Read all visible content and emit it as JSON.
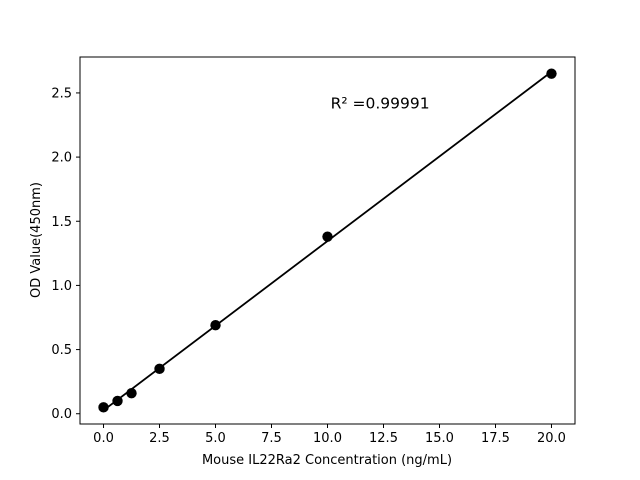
{
  "figure": {
    "background": "#ffffff"
  },
  "chart_data": {
    "type": "scatter",
    "title": "",
    "xlabel": "Mouse IL22Ra2 Concentration (ng/mL)",
    "ylabel": "OD Value(450nm)",
    "x": [
      0,
      0.625,
      1.25,
      2.5,
      5,
      10,
      20
    ],
    "y": [
      0.05,
      0.1,
      0.16,
      0.35,
      0.69,
      1.38,
      2.65
    ],
    "fit_line": "linear-regression",
    "annotation": {
      "text": "R² =0.99991",
      "x": 12.35,
      "y": 2.42
    },
    "xlim": [
      -1.05,
      21.05
    ],
    "ylim": [
      -0.08,
      2.78
    ],
    "x_ticks": {
      "values": [
        0,
        2.5,
        5,
        7.5,
        10,
        12.5,
        15,
        17.5,
        20
      ],
      "labels": [
        "0.0",
        "2.5",
        "5.0",
        "7.5",
        "10.0",
        "12.5",
        "15.0",
        "17.5",
        "20.0"
      ]
    },
    "y_ticks": {
      "values": [
        0,
        0.5,
        1,
        1.5,
        2,
        2.5
      ],
      "labels": [
        "0.0",
        "0.5",
        "1.0",
        "1.5",
        "2.0",
        "2.5"
      ]
    },
    "grid": false,
    "legend": "none",
    "colors": {
      "marker": "#000000",
      "line": "#000000",
      "axis": "#000000",
      "text": "#000000",
      "background": "#ffffff"
    }
  }
}
